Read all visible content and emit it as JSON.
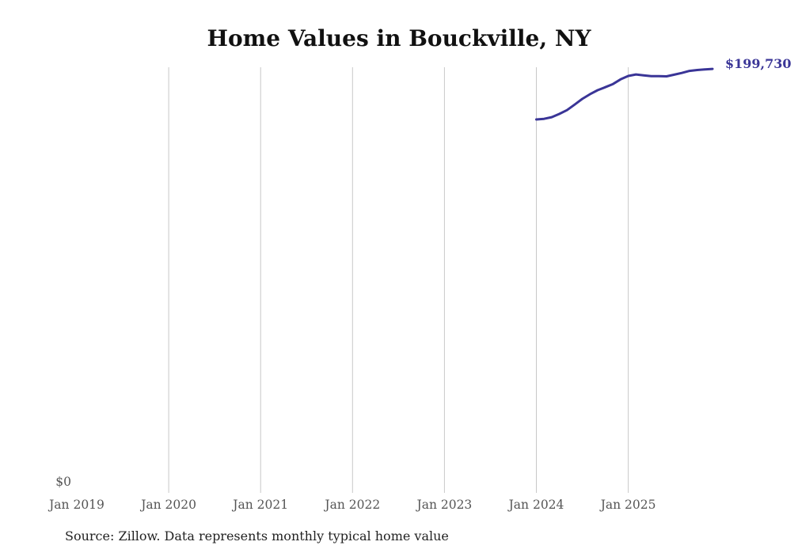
{
  "chart_data": {
    "type": "line",
    "title": "Home Values in Bouckville, NY",
    "source": "Source: Zillow. Data represents monthly typical home value",
    "xlabel": "",
    "ylabel": "",
    "x_ticks": [
      "Jan 2019",
      "Jan 2020",
      "Jan 2021",
      "Jan 2022",
      "Jan 2023",
      "Jan 2024",
      "Jan 2025"
    ],
    "y_ticks": [
      "$0"
    ],
    "ylim": [
      0,
      200500
    ],
    "grid": "vertical",
    "series": [
      {
        "name": "Typical home value",
        "color": "#3a3597",
        "start": "2024-01",
        "values": [
          175900,
          176200,
          177000,
          178500,
          180300,
          182900,
          185600,
          187800,
          189700,
          191100,
          192600,
          194800,
          196400,
          197100,
          196700,
          196300,
          196300,
          196200,
          197000,
          197800,
          198800,
          199200,
          199500,
          199730
        ]
      }
    ],
    "end_label": "$199,730"
  }
}
